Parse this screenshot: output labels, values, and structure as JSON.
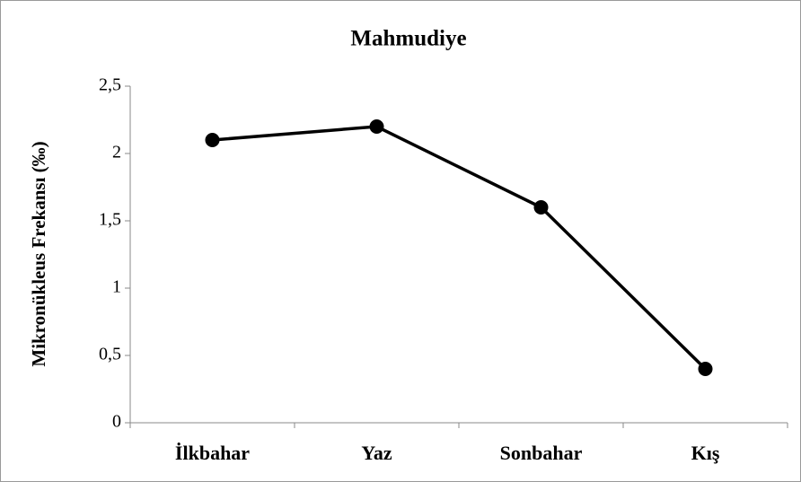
{
  "chart_data": {
    "type": "line",
    "title": "Mahmudiye",
    "y_label": "Mikronükleus Frekansı (‰)",
    "categories": [
      "İlkbahar",
      "Yaz",
      "Sonbahar",
      "Kış"
    ],
    "series": [
      {
        "name": "Mahmudiye",
        "color": "#000000",
        "values": [
          2.1,
          2.2,
          1.6,
          0.4
        ]
      }
    ],
    "ylim": [
      0,
      2.5
    ],
    "yticks": [
      0,
      {
        "value": 0.5,
        "label": "0,5"
      },
      1,
      {
        "value": 1.5,
        "label": "1,5"
      },
      2,
      {
        "value": 2.5,
        "label": "2,5"
      }
    ],
    "grid": false,
    "legend": false
  }
}
